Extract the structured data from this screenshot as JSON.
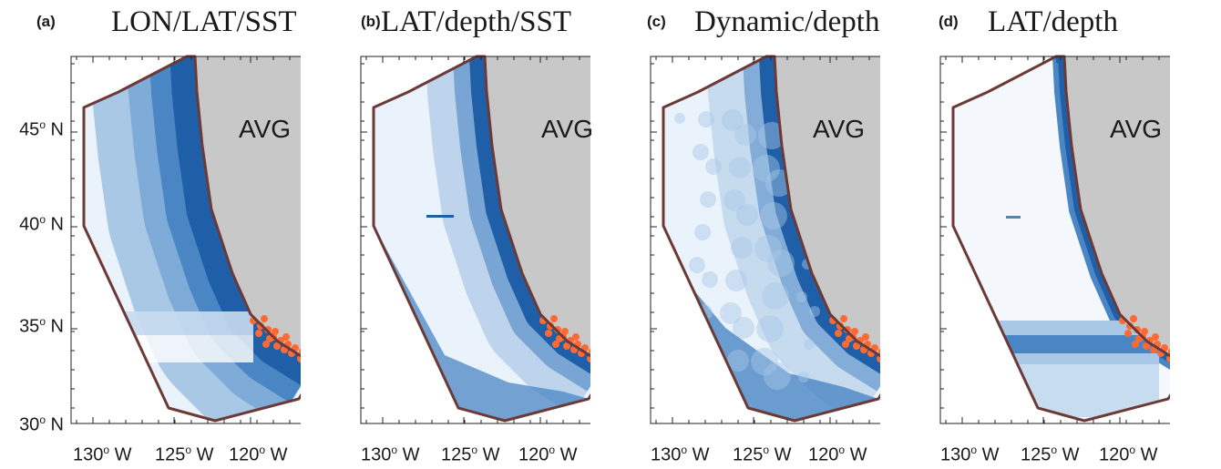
{
  "figure": {
    "panels": [
      {
        "letter": "(a)",
        "title": "LON/LAT/SST",
        "label": "AVG",
        "style": "bands"
      },
      {
        "letter": "(b)",
        "title": "LAT/depth/SST",
        "label": "AVG",
        "style": "gradient"
      },
      {
        "letter": "(c)",
        "title": "Dynamic/depth",
        "label": "AVG",
        "style": "mottled"
      },
      {
        "letter": "(d)",
        "title": "LAT/depth",
        "label": "AVG",
        "style": "coastal"
      }
    ],
    "y_ticks": [
      {
        "deg": "45",
        "suffix": " N"
      },
      {
        "deg": "40",
        "suffix": " N"
      },
      {
        "deg": "35",
        "suffix": " N"
      },
      {
        "deg": "30",
        "suffix": " N"
      }
    ],
    "x_ticks": [
      {
        "deg": "130",
        "suffix": " W"
      },
      {
        "deg": "125",
        "suffix": " W"
      },
      {
        "deg": "120",
        "suffix": " W"
      }
    ],
    "colors": {
      "land": "#c8c8c8",
      "boundary": "#6b3a36",
      "dark_blue": "#1f5fa8",
      "mid_blue": "#4a86c4",
      "light_blue": "#a9c8e6",
      "pale_blue": "#eaf2fb",
      "observations": "#ff6a33"
    }
  }
}
